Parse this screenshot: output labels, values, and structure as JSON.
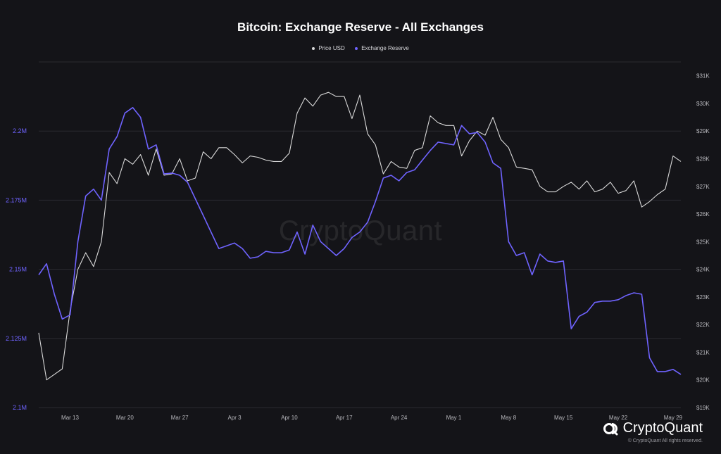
{
  "title": "Bitcoin: Exchange Reserve - All Exchanges",
  "watermark": "CryptoQuant",
  "brand": {
    "name": "CryptoQuant",
    "icon": "cryptoquant-logo-icon"
  },
  "copyright": "© CryptoQuant All rights reserved.",
  "colors": {
    "background": "#141418",
    "price": "#d9d9d9",
    "reserve": "#6f63ff",
    "grid": "#2a2a30"
  },
  "chart_data": {
    "type": "line",
    "title": "Bitcoin: Exchange Reserve - All Exchanges",
    "legend": {
      "position": "top-center",
      "items": [
        "Price USD",
        "Exchange Reserve"
      ]
    },
    "x_ticks": [
      "Mar 13",
      "Mar 20",
      "Mar 27",
      "Apr 3",
      "Apr 10",
      "Apr 17",
      "Apr 24",
      "May 1",
      "May 8",
      "May 15",
      "May 22",
      "May 29"
    ],
    "y_left": {
      "label_color": "#6f63ff",
      "ticks": [
        "2.1M",
        "2.125M",
        "2.15M",
        "2.175M",
        "2.2M"
      ],
      "tick_values": [
        2100000,
        2125000,
        2150000,
        2175000,
        2200000
      ],
      "range": [
        2100000,
        2225000
      ]
    },
    "y_right": {
      "ticks": [
        "$19K",
        "$20K",
        "$21K",
        "$22K",
        "$23K",
        "$24K",
        "$25K",
        "$26K",
        "$27K",
        "$28K",
        "$29K",
        "$30K",
        "$31K"
      ],
      "tick_values": [
        19000,
        20000,
        21000,
        22000,
        23000,
        24000,
        25000,
        26000,
        27000,
        28000,
        29000,
        30000,
        31000
      ],
      "range": [
        19000,
        31500
      ]
    },
    "grid": true,
    "x_start": "2023-03-09",
    "series": [
      {
        "name": "Price USD",
        "axis": "right",
        "color": "#d9d9d9",
        "values": [
          21700,
          20000,
          20200,
          20400,
          22500,
          24000,
          24600,
          24100,
          25000,
          27500,
          27100,
          28000,
          27800,
          28150,
          27400,
          28350,
          27400,
          27450,
          28000,
          27200,
          27300,
          28250,
          28000,
          28400,
          28400,
          28150,
          27850,
          28100,
          28050,
          27950,
          27900,
          27900,
          28200,
          29650,
          30200,
          29900,
          30300,
          30400,
          30250,
          30250,
          29450,
          30300,
          28900,
          28500,
          27450,
          27900,
          27700,
          27650,
          28300,
          28400,
          29550,
          29300,
          29200,
          29200,
          28100,
          28650,
          29000,
          28850,
          29500,
          28700,
          28400,
          27700,
          27650,
          27600,
          27000,
          26800,
          26800,
          27000,
          27150,
          26900,
          27200,
          26800,
          26900,
          27150,
          26750,
          26850,
          27200,
          26250,
          26450,
          26700,
          26900,
          28100,
          27900
        ]
      },
      {
        "name": "Exchange Reserve",
        "axis": "left",
        "color": "#6f63ff",
        "values": [
          2148000,
          2152000,
          2141000,
          2132000,
          2133500,
          2160000,
          2176500,
          2179000,
          2175000,
          2193500,
          2198000,
          2206500,
          2208500,
          2205000,
          2193500,
          2195000,
          2184500,
          2184800,
          2184000,
          2181500,
          2175500,
          2169500,
          2163500,
          2157500,
          2158500,
          2159500,
          2157500,
          2154000,
          2154500,
          2156500,
          2156000,
          2156000,
          2157000,
          2163500,
          2155500,
          2166000,
          2160000,
          2157500,
          2155000,
          2157500,
          2161500,
          2163500,
          2167000,
          2174500,
          2183000,
          2184000,
          2182000,
          2185000,
          2186000,
          2189500,
          2193000,
          2196000,
          2195500,
          2195000,
          2202000,
          2199000,
          2199500,
          2196000,
          2188500,
          2186500,
          2160000,
          2155000,
          2156000,
          2148000,
          2155500,
          2153000,
          2152500,
          2153000,
          2128500,
          2133000,
          2134500,
          2138000,
          2138500,
          2138500,
          2139000,
          2140500,
          2141500,
          2141000,
          2118000,
          2113000,
          2113000,
          2113800,
          2112000
        ]
      }
    ]
  }
}
